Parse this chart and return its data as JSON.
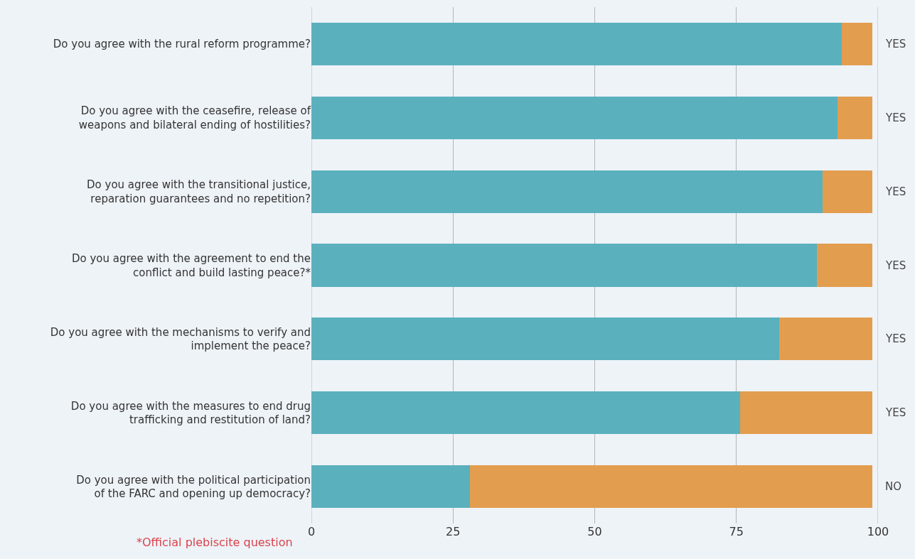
{
  "chart_data": {
    "type": "bar",
    "orientation": "horizontal",
    "stacked": true,
    "categories": [
      "Do you agree with the rural reform programme?",
      "Do you agree with the ceasefire, release of weapons and bilateral ending of hostilities?",
      "Do you agree with the transitional justice, reparation guarantees and no repetition?",
      "Do you agree with the agreement to end the conflict and build lasting peace?*",
      "Do you agree with the mechanisms to verify and implement the peace?",
      "Do you agree with the measures to end drug trafficking and restitution of land?",
      "Do you agree with the political participation of the FARC and opening up democracy?"
    ],
    "series": [
      {
        "color": "#5ab0bd",
        "values": [
          93.6,
          92.9,
          90.2,
          89.2,
          82.6,
          75.7,
          28.0
        ]
      },
      {
        "color": "#e39d4f",
        "values": [
          5.4,
          6.1,
          8.8,
          9.8,
          16.4,
          23.3,
          71.0
        ]
      }
    ],
    "xlim": [
      0,
      100
    ],
    "xticks": [
      0,
      25,
      50,
      75,
      100
    ],
    "grid": "x",
    "annotations": [
      "YES",
      "YES",
      "YES",
      "YES",
      "YES",
      "YES",
      "NO",
      "*Official plebiscite question"
    ]
  }
}
